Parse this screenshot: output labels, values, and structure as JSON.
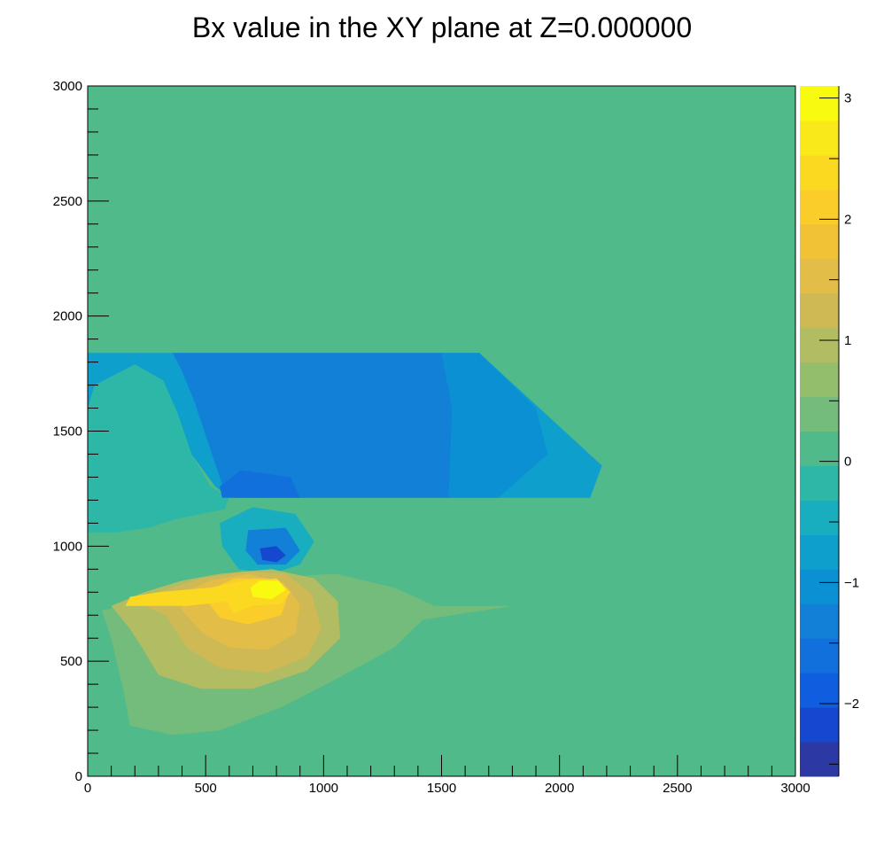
{
  "chart_data": {
    "type": "heatmap",
    "title": "Bx value in the XY plane at Z=0.000000",
    "xlabel": "",
    "ylabel": "",
    "xlim": [
      0,
      3000
    ],
    "ylim": [
      0,
      3000
    ],
    "x_major_ticks": [
      0,
      500,
      1000,
      1500,
      2000,
      2500,
      3000
    ],
    "y_major_ticks": [
      0,
      500,
      1000,
      1500,
      2000,
      2500,
      3000
    ],
    "x_tick_labels": [
      "0",
      "500",
      "1000",
      "1500",
      "2000",
      "2500",
      "3000"
    ],
    "y_tick_labels": [
      "0",
      "500",
      "1000",
      "1500",
      "2000",
      "2500",
      "3000"
    ],
    "colorbar": {
      "zlim": [
        -2.6,
        3.1
      ],
      "ticks": [
        -2,
        -1,
        0,
        1,
        2,
        3
      ],
      "tick_labels": [
        "−2",
        "−1",
        "0",
        "1",
        "2",
        "3"
      ],
      "levels": 20,
      "colors": [
        "#2c38a4",
        "#1648cf",
        "#0f5ee0",
        "#1270dc",
        "#1280d6",
        "#0a90d3",
        "#0e9fcc",
        "#18aec0",
        "#2db7a6",
        "#50ba8b",
        "#74bc7c",
        "#93be6b",
        "#b2bc63",
        "#cfb955",
        "#e2bd48",
        "#f2c236",
        "#fbcd2a",
        "#fcd921",
        "#fae91a",
        "#f8fb10"
      ]
    },
    "background_value": 0.05,
    "regions": [
      {
        "value": -0.65,
        "polygon": [
          [
            0,
            1840
          ],
          [
            1660,
            1840
          ],
          [
            2180,
            1350
          ],
          [
            2130,
            1210
          ],
          [
            600,
            1210
          ],
          [
            540,
            1260
          ],
          [
            440,
            1400
          ],
          [
            380,
            1580
          ],
          [
            320,
            1720
          ],
          [
            200,
            1790
          ],
          [
            30,
            1700
          ],
          [
            0,
            1600
          ]
        ]
      },
      {
        "value": -1.25,
        "polygon": [
          [
            360,
            1840
          ],
          [
            1150,
            1840
          ],
          [
            1175,
            1210
          ],
          [
            620,
            1210
          ],
          [
            570,
            1270
          ],
          [
            520,
            1420
          ],
          [
            455,
            1620
          ],
          [
            400,
            1760
          ]
        ]
      },
      {
        "value": -1.25,
        "polygon": [
          [
            1150,
            1840
          ],
          [
            1500,
            1840
          ],
          [
            1545,
            1600
          ],
          [
            1530,
            1210
          ],
          [
            1175,
            1210
          ]
        ]
      },
      {
        "value": -0.95,
        "polygon": [
          [
            1500,
            1840
          ],
          [
            1660,
            1840
          ],
          [
            1900,
            1600
          ],
          [
            1950,
            1400
          ],
          [
            1740,
            1210
          ],
          [
            1530,
            1210
          ],
          [
            1545,
            1600
          ]
        ]
      },
      {
        "value": -0.3,
        "polygon": [
          [
            0,
            1600
          ],
          [
            30,
            1700
          ],
          [
            200,
            1790
          ],
          [
            320,
            1720
          ],
          [
            380,
            1580
          ],
          [
            440,
            1400
          ],
          [
            520,
            1260
          ],
          [
            600,
            1210
          ],
          [
            580,
            1160
          ],
          [
            480,
            1140
          ],
          [
            380,
            1120
          ],
          [
            260,
            1080
          ],
          [
            120,
            1060
          ],
          [
            0,
            1060
          ]
        ]
      },
      {
        "value": -1.65,
        "polygon": [
          [
            560,
            1260
          ],
          [
            650,
            1330
          ],
          [
            860,
            1300
          ],
          [
            900,
            1210
          ],
          [
            570,
            1210
          ]
        ]
      },
      {
        "value": -0.6,
        "polygon": [
          [
            560,
            1100
          ],
          [
            700,
            1170
          ],
          [
            880,
            1140
          ],
          [
            960,
            1020
          ],
          [
            900,
            920
          ],
          [
            780,
            880
          ],
          [
            640,
            900
          ],
          [
            570,
            1000
          ]
        ]
      },
      {
        "value": -1.25,
        "polygon": [
          [
            680,
            1070
          ],
          [
            840,
            1080
          ],
          [
            900,
            980
          ],
          [
            840,
            920
          ],
          [
            720,
            920
          ],
          [
            670,
            980
          ]
        ]
      },
      {
        "value": -2.1,
        "polygon": [
          [
            730,
            990
          ],
          [
            800,
            1000
          ],
          [
            840,
            960
          ],
          [
            800,
            930
          ],
          [
            740,
            940
          ]
        ]
      },
      {
        "value": 0.45,
        "polygon": [
          [
            180,
            220
          ],
          [
            360,
            180
          ],
          [
            560,
            200
          ],
          [
            820,
            300
          ],
          [
            1050,
            420
          ],
          [
            1300,
            560
          ],
          [
            1420,
            680
          ],
          [
            1800,
            740
          ],
          [
            1470,
            740
          ],
          [
            1300,
            820
          ],
          [
            1050,
            880
          ],
          [
            880,
            870
          ],
          [
            620,
            860
          ],
          [
            420,
            800
          ],
          [
            220,
            760
          ],
          [
            60,
            720
          ],
          [
            100,
            600
          ],
          [
            150,
            380
          ]
        ]
      },
      {
        "value": 0.85,
        "polygon": [
          [
            230,
            560
          ],
          [
            300,
            440
          ],
          [
            480,
            380
          ],
          [
            700,
            380
          ],
          [
            930,
            460
          ],
          [
            1070,
            600
          ],
          [
            1060,
            760
          ],
          [
            960,
            860
          ],
          [
            780,
            900
          ],
          [
            560,
            880
          ],
          [
            400,
            850
          ],
          [
            240,
            800
          ],
          [
            100,
            740
          ],
          [
            180,
            640
          ]
        ]
      },
      {
        "value": 1.25,
        "polygon": [
          [
            330,
            700
          ],
          [
            420,
            560
          ],
          [
            560,
            470
          ],
          [
            760,
            450
          ],
          [
            930,
            520
          ],
          [
            990,
            640
          ],
          [
            950,
            790
          ],
          [
            840,
            880
          ],
          [
            660,
            890
          ],
          [
            480,
            860
          ],
          [
            300,
            800
          ],
          [
            200,
            760
          ]
        ]
      },
      {
        "value": 1.65,
        "polygon": [
          [
            400,
            720
          ],
          [
            490,
            620
          ],
          [
            600,
            560
          ],
          [
            760,
            550
          ],
          [
            880,
            620
          ],
          [
            900,
            750
          ],
          [
            830,
            840
          ],
          [
            680,
            880
          ],
          [
            520,
            850
          ],
          [
            380,
            790
          ]
        ]
      },
      {
        "value": 2.05,
        "polygon": [
          [
            500,
            770
          ],
          [
            560,
            690
          ],
          [
            680,
            660
          ],
          [
            820,
            700
          ],
          [
            850,
            790
          ],
          [
            760,
            860
          ],
          [
            620,
            860
          ],
          [
            540,
            820
          ]
        ]
      },
      {
        "value": 2.45,
        "polygon": [
          [
            160,
            740
          ],
          [
            420,
            740
          ],
          [
            590,
            760
          ],
          [
            620,
            710
          ],
          [
            700,
            740
          ],
          [
            820,
            750
          ],
          [
            860,
            800
          ],
          [
            800,
            860
          ],
          [
            660,
            850
          ],
          [
            520,
            820
          ],
          [
            300,
            800
          ],
          [
            180,
            780
          ]
        ]
      },
      {
        "value": 2.85,
        "polygon": [
          [
            700,
            780
          ],
          [
            780,
            770
          ],
          [
            840,
            810
          ],
          [
            810,
            850
          ],
          [
            730,
            850
          ],
          [
            690,
            820
          ]
        ]
      },
      {
        "value": 3.05,
        "polygon": [
          [
            740,
            800
          ],
          [
            810,
            800
          ],
          [
            820,
            830
          ],
          [
            770,
            840
          ],
          [
            730,
            830
          ]
        ]
      }
    ]
  }
}
